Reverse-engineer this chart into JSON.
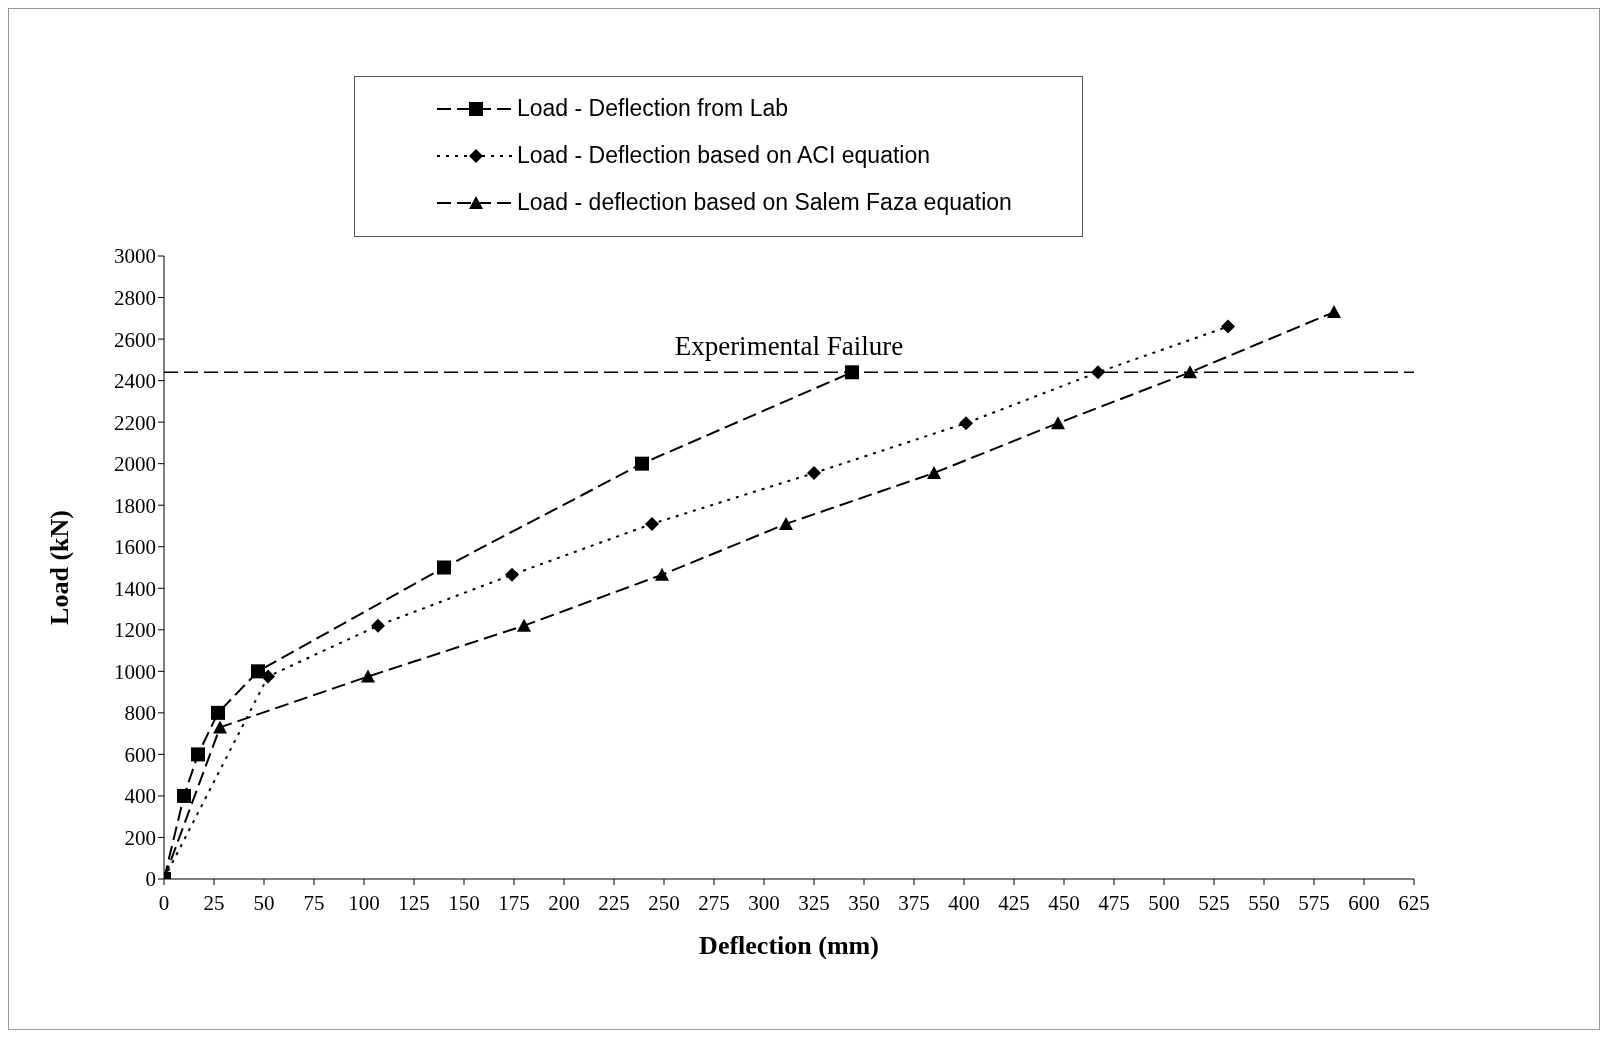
{
  "chart_data": {
    "type": "line",
    "xlabel": "Deflection (mm)",
    "ylabel": "Load (kN)",
    "xlim": [
      0,
      625
    ],
    "xticks": [
      0,
      25,
      50,
      75,
      100,
      125,
      150,
      175,
      200,
      225,
      250,
      275,
      300,
      325,
      350,
      375,
      400,
      425,
      450,
      475,
      500,
      525,
      550,
      575,
      600,
      625
    ],
    "ylim": [
      0,
      3000
    ],
    "yticks": [
      0,
      200,
      400,
      600,
      800,
      1000,
      1200,
      1400,
      1600,
      1800,
      2000,
      2200,
      2400,
      2600,
      2800,
      3000
    ],
    "legend": "top",
    "series": [
      {
        "name": "Load - Deflection from Lab",
        "color": "#000000",
        "marker": "square",
        "line_style": "dashed",
        "x": [
          0,
          10,
          17,
          27,
          47,
          140,
          239,
          344
        ],
        "values": [
          0,
          400,
          600,
          800,
          1000,
          1500,
          2000,
          2440
        ]
      },
      {
        "name": "Load - Deflection based on ACI equation",
        "color": "#000000",
        "marker": "diamond",
        "line_style": "dotted",
        "x": [
          0,
          52,
          107,
          174,
          244,
          325,
          401,
          467,
          532
        ],
        "values": [
          0,
          975,
          1220,
          1465,
          1710,
          1955,
          2195,
          2440,
          2660
        ]
      },
      {
        "name": "Load - deflection based on Salem Faza equation",
        "color": "#000000",
        "marker": "triangle",
        "line_style": "dashed",
        "x": [
          0,
          28,
          102,
          180,
          249,
          311,
          385,
          447,
          513,
          585
        ],
        "values": [
          0,
          730,
          975,
          1220,
          1465,
          1710,
          1955,
          2195,
          2440,
          2730
        ]
      }
    ],
    "ref_lines": [
      {
        "axis": "y",
        "value": 2440,
        "label": "Experimental Failure",
        "color": "#000000",
        "line_style": "dashed"
      }
    ]
  }
}
